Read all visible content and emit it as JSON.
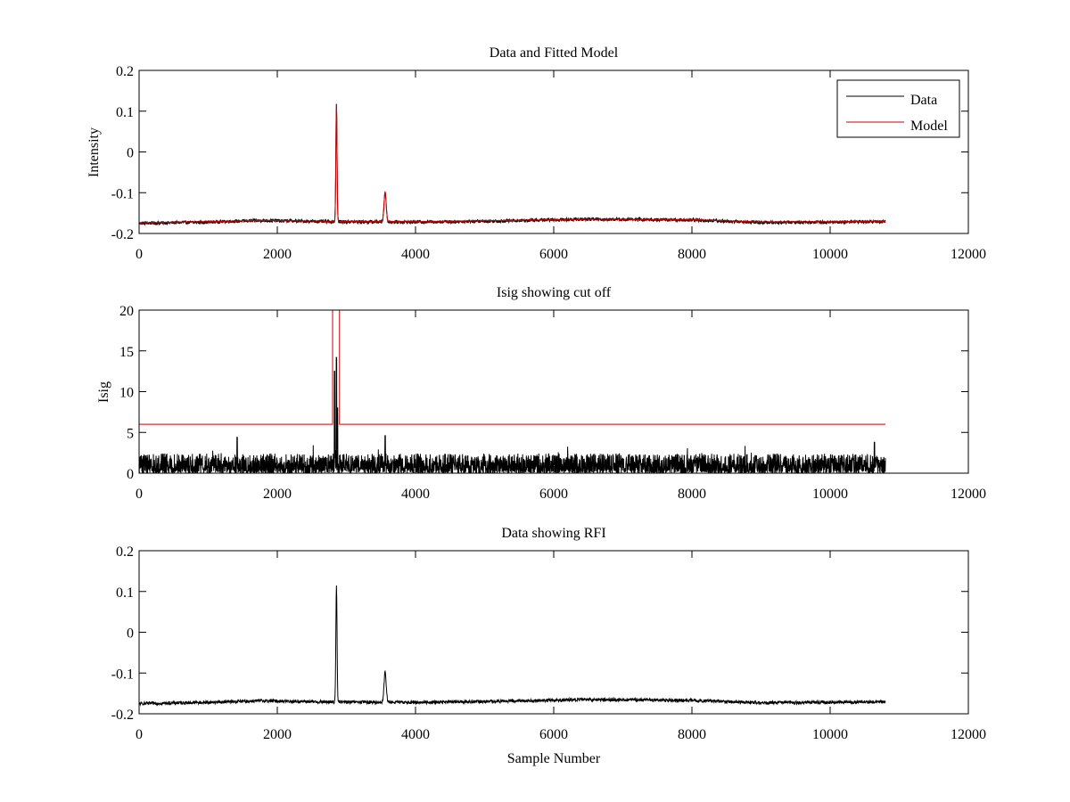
{
  "figure": {
    "background": "#ffffff"
  },
  "chart_data": [
    {
      "type": "line",
      "title": "Data and Fitted Model",
      "xlabel": "",
      "ylabel": "Intensity",
      "xlim": [
        0,
        12000
      ],
      "ylim": [
        -0.2,
        0.2
      ],
      "xticks": [
        0,
        2000,
        4000,
        6000,
        8000,
        10000,
        12000
      ],
      "yticks": [
        -0.2,
        -0.1,
        0,
        0.1,
        0.2
      ],
      "xtick_labels": [
        "0",
        "2000",
        "4000",
        "6000",
        "8000",
        "10000",
        "12000"
      ],
      "ytick_labels": [
        "-0.2",
        "-0.1",
        "0",
        "0.1",
        "0.2"
      ],
      "grid": false,
      "legend": {
        "placement": "top-right",
        "entries": [
          "Data",
          "Model"
        ]
      },
      "series": [
        {
          "name": "Data",
          "color": "#000000",
          "x_range": [
            0,
            10800
          ],
          "baseline": [
            [
              0,
              -0.175
            ],
            [
              1000,
              -0.172
            ],
            [
              1800,
              -0.168
            ],
            [
              2700,
              -0.171
            ],
            [
              4000,
              -0.172
            ],
            [
              5000,
              -0.17
            ],
            [
              6500,
              -0.165
            ],
            [
              8000,
              -0.167
            ],
            [
              9000,
              -0.173
            ],
            [
              10800,
              -0.171
            ]
          ],
          "noise": 0.004,
          "peaks": [
            {
              "x": 2856,
              "y": 0.118,
              "width": 12
            },
            {
              "x": 3560,
              "y": -0.098,
              "width": 22
            }
          ]
        },
        {
          "name": "Model",
          "color": "#cc0000",
          "x_range": [
            0,
            10800
          ],
          "baseline": [
            [
              0,
              -0.174
            ],
            [
              1000,
              -0.171
            ],
            [
              1800,
              -0.168
            ],
            [
              2700,
              -0.17
            ],
            [
              4000,
              -0.171
            ],
            [
              5000,
              -0.169
            ],
            [
              6500,
              -0.165
            ],
            [
              8000,
              -0.166
            ],
            [
              9000,
              -0.172
            ],
            [
              10800,
              -0.17
            ]
          ],
          "noise": 0.0008,
          "peaks": [
            {
              "x": 2856,
              "y": 0.118,
              "width": 12
            },
            {
              "x": 3560,
              "y": -0.098,
              "width": 22
            }
          ]
        }
      ]
    },
    {
      "type": "line",
      "title": "Isig showing cut off",
      "xlabel": "",
      "ylabel": "Isig",
      "xlim": [
        0,
        12000
      ],
      "ylim": [
        0,
        20
      ],
      "xticks": [
        0,
        2000,
        4000,
        6000,
        8000,
        10000,
        12000
      ],
      "yticks": [
        0,
        5,
        10,
        15,
        20
      ],
      "xtick_labels": [
        "0",
        "2000",
        "4000",
        "6000",
        "8000",
        "10000",
        "12000"
      ],
      "ytick_labels": [
        "0",
        "5",
        "10",
        "15",
        "20"
      ],
      "grid": false,
      "series": [
        {
          "color": "#000000",
          "x_range": [
            0,
            10800
          ],
          "noise_level": 1.0,
          "noise_spread": 2.4,
          "spikes": [
            {
              "x": 1420,
              "y": 4.4
            },
            {
              "x": 2830,
              "y": 12.5
            },
            {
              "x": 2856,
              "y": 14.2
            },
            {
              "x": 2870,
              "y": 8.0
            },
            {
              "x": 3560,
              "y": 4.6
            },
            {
              "x": 10640,
              "y": 3.8
            }
          ]
        },
        {
          "color": "#cc0000",
          "points": [
            [
              0,
              6
            ],
            [
              2800,
              6
            ],
            [
              2800,
              20
            ],
            [
              2900,
              20
            ],
            [
              2900,
              6
            ],
            [
              10800,
              6
            ]
          ]
        }
      ]
    },
    {
      "type": "line",
      "title": "Data showing RFI",
      "xlabel": "Sample Number",
      "ylabel": "",
      "xlim": [
        0,
        12000
      ],
      "ylim": [
        -0.2,
        0.2
      ],
      "xticks": [
        0,
        2000,
        4000,
        6000,
        8000,
        10000,
        12000
      ],
      "yticks": [
        -0.2,
        -0.1,
        0,
        0.1,
        0.2
      ],
      "xtick_labels": [
        "0",
        "2000",
        "4000",
        "6000",
        "8000",
        "10000",
        "12000"
      ],
      "ytick_labels": [
        "-0.2",
        "-0.1",
        "0",
        "0.1",
        "0.2"
      ],
      "grid": false,
      "series": [
        {
          "color": "#000000",
          "x_range": [
            0,
            10800
          ],
          "baseline": [
            [
              0,
              -0.175
            ],
            [
              1000,
              -0.172
            ],
            [
              1800,
              -0.168
            ],
            [
              2700,
              -0.171
            ],
            [
              4000,
              -0.172
            ],
            [
              5000,
              -0.17
            ],
            [
              6500,
              -0.165
            ],
            [
              8000,
              -0.167
            ],
            [
              9000,
              -0.173
            ],
            [
              10800,
              -0.171
            ]
          ],
          "noise": 0.004,
          "peaks": [
            {
              "x": 2856,
              "y": 0.118,
              "width": 12
            },
            {
              "x": 3560,
              "y": -0.098,
              "width": 22
            }
          ]
        }
      ]
    }
  ]
}
